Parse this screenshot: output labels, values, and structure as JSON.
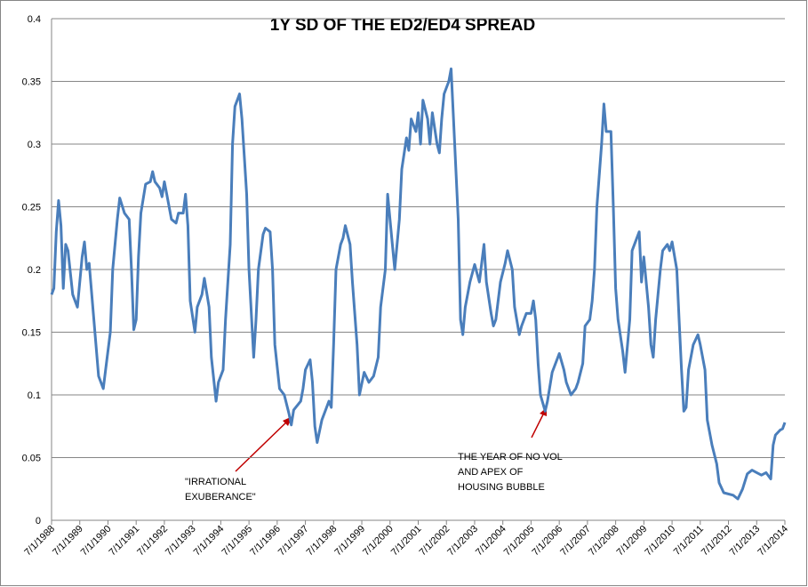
{
  "chart_data": {
    "type": "line",
    "title": "1Y SD OF THE ED2/ED4 SPREAD",
    "annotations": [
      {
        "lines": [
          "\"IRRATIONAL",
          "EXUBERANCE\""
        ]
      },
      {
        "lines": [
          "THE YEAR OF NO VOL",
          "AND APEX OF",
          "HOUSING BUBBLE"
        ]
      }
    ],
    "xlim": [
      "7/1/1988",
      "7/1/2014"
    ],
    "xticks": [
      "7/1/1988",
      "7/1/1989",
      "7/1/1990",
      "7/1/1991",
      "7/1/1992",
      "7/1/1993",
      "7/1/1994",
      "7/1/1995",
      "7/1/1996",
      "7/1/1997",
      "7/1/1998",
      "7/1/1999",
      "7/1/2000",
      "7/1/2001",
      "7/1/2002",
      "7/1/2003",
      "7/1/2004",
      "7/1/2005",
      "7/1/2006",
      "7/1/2007",
      "7/1/2008",
      "7/1/2009",
      "7/1/2010",
      "7/1/2011",
      "7/1/2012",
      "7/1/2013",
      "7/1/2014"
    ],
    "ylim": [
      0,
      0.4
    ],
    "yticks": [
      0,
      0.05,
      0.1,
      0.15,
      0.2,
      0.25,
      0.3,
      0.35,
      0.4
    ],
    "grid": true,
    "x": [
      "7/1/1988",
      "8/1/1988",
      "9/1/1988",
      "10/1/1988",
      "11/1/1988",
      "12/1/1988",
      "1/1/1989",
      "2/1/1989",
      "4/1/1989",
      "6/1/1989",
      "8/1/1989",
      "9/1/1989",
      "10/1/1989",
      "11/1/1989",
      "1/1/1990",
      "3/1/1990",
      "5/1/1990",
      "6/1/1990",
      "8/1/1990",
      "9/1/1990",
      "11/1/1990",
      "12/1/1990",
      "2/1/1991",
      "4/1/1991",
      "5/1/1991",
      "6/1/1991",
      "7/1/1991",
      "8/1/1991",
      "9/1/1991",
      "11/1/1991",
      "1/1/1992",
      "2/1/1992",
      "3/1/1992",
      "5/1/1992",
      "6/1/1992",
      "7/1/1992",
      "8/1/1992",
      "10/1/1992",
      "12/1/1992",
      "1/1/1993",
      "3/1/1993",
      "4/1/1993",
      "5/1/1993",
      "6/1/1993",
      "8/1/1993",
      "9/1/1993",
      "11/1/1993",
      "12/1/1993",
      "2/1/1994",
      "3/1/1994",
      "5/1/1994",
      "6/1/1994",
      "8/1/1994",
      "9/1/1994",
      "11/1/1994",
      "12/1/1994",
      "1/1/1995",
      "3/1/1995",
      "4/1/1995",
      "6/1/1995",
      "7/1/1995",
      "9/1/1995",
      "10/1/1995",
      "11/1/1995",
      "1/1/1996",
      "2/1/1996",
      "4/1/1996",
      "5/1/1996",
      "6/1/1996",
      "8/1/1996",
      "10/1/1996",
      "12/1/1996",
      "1/1/1997",
      "2/1/1997",
      "5/1/1997",
      "6/1/1997",
      "7/1/1997",
      "9/1/1997",
      "10/1/1997",
      "11/1/1997",
      "12/1/1997",
      "2/1/1998",
      "4/1/1998",
      "5/1/1998",
      "6/1/1998",
      "7/1/1998",
      "8/1/1998",
      "10/1/1998",
      "11/1/1998",
      "12/1/1998",
      "2/1/1999",
      "3/1/1999",
      "5/1/1999",
      "6/1/1999",
      "8/1/1999",
      "10/1/1999",
      "12/1/1999",
      "2/1/2000",
      "3/1/2000",
      "5/1/2000",
      "6/1/2000",
      "8/1/2000",
      "9/1/2000",
      "11/1/2000",
      "12/1/2000",
      "2/1/2001",
      "3/1/2001",
      "4/1/2001",
      "6/1/2001",
      "7/1/2001",
      "8/1/2001",
      "9/1/2001",
      "11/1/2001",
      "12/1/2001",
      "1/1/2002",
      "3/1/2002",
      "4/1/2002",
      "5/1/2002",
      "6/1/2002",
      "8/1/2002",
      "9/1/2002",
      "10/1/2002",
      "12/1/2002",
      "1/1/2003",
      "2/1/2003",
      "3/1/2003",
      "5/1/2003",
      "7/1/2003",
      "9/1/2003",
      "11/1/2003",
      "12/1/2003",
      "2/1/2004",
      "3/1/2004",
      "4/1/2004",
      "6/1/2004",
      "8/1/2004",
      "9/1/2004",
      "11/1/2004",
      "12/1/2004",
      "2/1/2005",
      "3/1/2005",
      "5/1/2005",
      "7/1/2005",
      "8/1/2005",
      "9/1/2005",
      "10/1/2005",
      "11/1/2005",
      "1/1/2006",
      "2/1/2006",
      "4/1/2006",
      "7/1/2006",
      "9/1/2006",
      "10/1/2006",
      "12/1/2006",
      "2/1/2007",
      "3/1/2007",
      "5/1/2007",
      "6/1/2007",
      "8/1/2007",
      "9/1/2007",
      "10/1/2007",
      "11/1/2007",
      "1/1/2008",
      "2/1/2008",
      "3/1/2008",
      "5/1/2008",
      "6/1/2008",
      "7/1/2008",
      "8/1/2008",
      "10/1/2008",
      "11/1/2008",
      "1/1/2009",
      "2/1/2009",
      "4/1/2009",
      "5/1/2009",
      "6/1/2009",
      "7/1/2009",
      "9/1/2009",
      "10/1/2009",
      "11/1/2009",
      "12/1/2009",
      "2/1/2010",
      "3/1/2010",
      "5/1/2010",
      "6/1/2010",
      "7/1/2010",
      "9/1/2010",
      "10/1/2010",
      "11/1/2010",
      "12/1/2010",
      "1/1/2011",
      "2/1/2011",
      "4/1/2011",
      "6/1/2011",
      "7/1/2011",
      "9/1/2011",
      "10/1/2011",
      "12/1/2011",
      "2/1/2012",
      "3/1/2012",
      "5/1/2012",
      "9/1/2012",
      "11/1/2012",
      "1/1/2013",
      "3/1/2013",
      "5/1/2013",
      "7/1/2013",
      "9/1/2013",
      "11/1/2013",
      "1/1/2014",
      "2/1/2014",
      "3/1/2014",
      "5/1/2014",
      "6/1/2014",
      "7/1/2014"
    ],
    "series": [
      {
        "color": "#4a7ebb",
        "values": [
          0.18,
          0.185,
          0.23,
          0.255,
          0.235,
          0.185,
          0.22,
          0.215,
          0.18,
          0.17,
          0.21,
          0.222,
          0.2,
          0.205,
          0.16,
          0.115,
          0.105,
          0.12,
          0.15,
          0.2,
          0.24,
          0.257,
          0.245,
          0.24,
          0.2,
          0.152,
          0.16,
          0.21,
          0.245,
          0.268,
          0.27,
          0.278,
          0.27,
          0.265,
          0.258,
          0.27,
          0.26,
          0.24,
          0.237,
          0.245,
          0.245,
          0.26,
          0.235,
          0.175,
          0.15,
          0.17,
          0.18,
          0.193,
          0.17,
          0.13,
          0.095,
          0.11,
          0.12,
          0.16,
          0.22,
          0.3,
          0.33,
          0.34,
          0.32,
          0.26,
          0.2,
          0.13,
          0.16,
          0.2,
          0.228,
          0.233,
          0.23,
          0.2,
          0.14,
          0.105,
          0.1,
          0.085,
          0.076,
          0.088,
          0.095,
          0.105,
          0.12,
          0.128,
          0.11,
          0.075,
          0.062,
          0.08,
          0.09,
          0.095,
          0.09,
          0.14,
          0.2,
          0.22,
          0.225,
          0.235,
          0.22,
          0.19,
          0.14,
          0.1,
          0.118,
          0.11,
          0.115,
          0.13,
          0.17,
          0.2,
          0.26,
          0.22,
          0.2,
          0.24,
          0.28,
          0.305,
          0.295,
          0.32,
          0.31,
          0.325,
          0.3,
          0.335,
          0.32,
          0.3,
          0.325,
          0.3,
          0.293,
          0.32,
          0.34,
          0.35,
          0.36,
          0.32,
          0.24,
          0.16,
          0.148,
          0.17,
          0.19,
          0.204,
          0.19,
          0.22,
          0.19,
          0.165,
          0.155,
          0.16,
          0.19,
          0.205,
          0.215,
          0.2,
          0.17,
          0.148,
          0.155,
          0.165,
          0.165,
          0.175,
          0.16,
          0.125,
          0.1,
          0.087,
          0.095,
          0.118,
          0.133,
          0.12,
          0.11,
          0.1,
          0.105,
          0.11,
          0.125,
          0.155,
          0.16,
          0.175,
          0.2,
          0.25,
          0.3,
          0.332,
          0.31,
          0.31,
          0.25,
          0.185,
          0.16,
          0.135,
          0.118,
          0.16,
          0.215,
          0.225,
          0.23,
          0.19,
          0.21,
          0.17,
          0.14,
          0.13,
          0.16,
          0.2,
          0.215,
          0.22,
          0.215,
          0.222,
          0.2,
          0.16,
          0.12,
          0.087,
          0.09,
          0.12,
          0.14,
          0.148,
          0.14,
          0.12,
          0.08,
          0.06,
          0.045,
          0.03,
          0.022,
          0.02,
          0.017,
          0.025,
          0.037,
          0.04,
          0.038,
          0.036,
          0.038,
          0.033,
          0.06,
          0.068,
          0.072,
          0.073,
          0.078
        ]
      }
    ]
  }
}
